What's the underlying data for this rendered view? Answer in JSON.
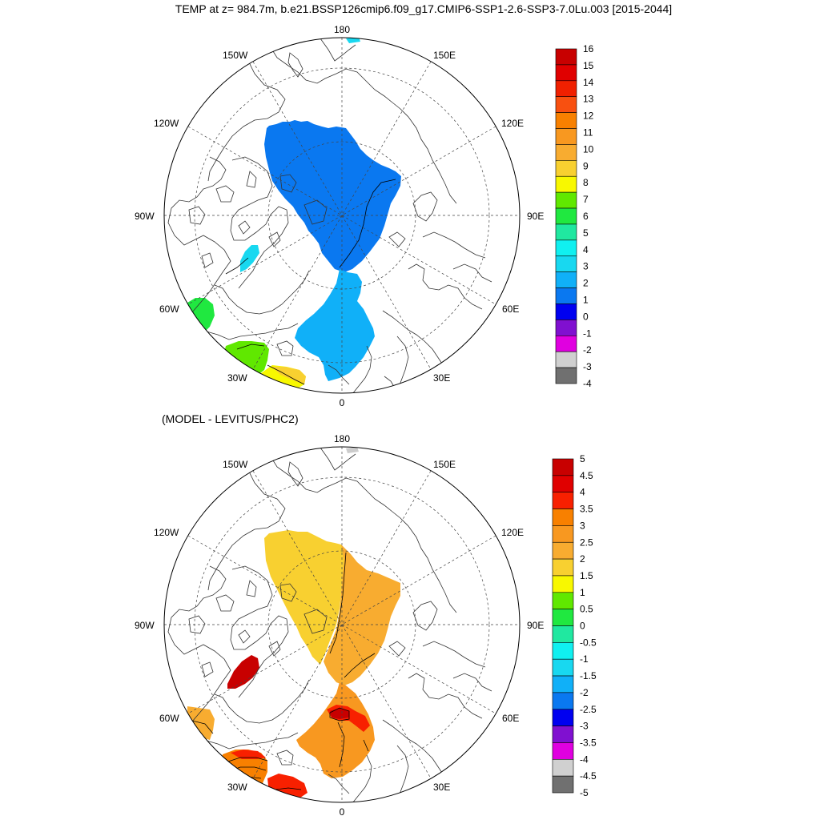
{
  "title": "TEMP at z= 984.7m, b.e21.BSSP126cmip6.f09_g17.CMIP6-SSP1-2.6-SSP3-7.0Lu.003 [2015-2044]",
  "subtitle": "(MODEL - LEVITUS/PHC2)",
  "lon_labels": {
    "top": "180",
    "bottom": "0",
    "left": "90W",
    "right": "90E",
    "ul_upper": "150W",
    "ul_lower": "120W",
    "ur_upper": "150E",
    "ur_lower": "120E",
    "ll_upper": "60W",
    "ll_lower": "30W",
    "lr_upper": "60E",
    "lr_lower": "30E"
  },
  "colorbars": [
    {
      "name": "temperature",
      "labels": [
        "16",
        "15",
        "14",
        "13",
        "12",
        "11",
        "10",
        "9",
        "8",
        "7",
        "6",
        "5",
        "4",
        "3",
        "2",
        "1",
        "0",
        "-1",
        "-2",
        "-3",
        "-4"
      ],
      "colors": [
        "#c80000",
        "#e00000",
        "#f02000",
        "#f85010",
        "#f88000",
        "#f89820",
        "#f8ac30",
        "#f8d030",
        "#f8f800",
        "#60e800",
        "#20e840",
        "#20e8a0",
        "#10f0f0",
        "#18d8f0",
        "#10b0f8",
        "#0a78f0",
        "#0000f0",
        "#8010d0",
        "#e000e0",
        "#d0d0d0",
        "#707070"
      ]
    },
    {
      "name": "difference",
      "labels": [
        "5",
        "4.5",
        "4",
        "3.5",
        "3",
        "2.5",
        "2",
        "1.5",
        "1",
        "0.5",
        "0",
        "-0.5",
        "-1",
        "-1.5",
        "-2",
        "-2.5",
        "-3",
        "-3.5",
        "-4",
        "-4.5",
        "-5"
      ],
      "colors": [
        "#c80000",
        "#e00000",
        "#f82000",
        "#f88000",
        "#f89820",
        "#f8ac30",
        "#f8d030",
        "#f8f800",
        "#60e800",
        "#20e840",
        "#20e8a0",
        "#10f0f0",
        "#18d8f0",
        "#10b0f8",
        "#0a78f0",
        "#0000f0",
        "#8010d0",
        "#e000e0",
        "#d0d0d0",
        "#707070"
      ]
    }
  ],
  "map_colors": {
    "upper_main": "#0a78f0",
    "upper_atlantic": "#10b0f8",
    "upper_baffin": "#18d8f0",
    "upper_labrador": "#20e840",
    "upper_ne_atlantic_green": "#60e800",
    "upper_ne_atlantic_yellow": "#f8f800",
    "upper_ne_atlantic_gold": "#f8d030",
    "lower_canadian": "#f8d030",
    "lower_eurasian": "#f8ac30",
    "lower_atlantic": "#f89820",
    "lower_hotspot": "#f82000",
    "lower_hotspot_core": "#c80000",
    "lower_baffin": "#c80000",
    "lower_labrador": "#f8ac30",
    "lower_ne_atlantic": "#f88000"
  }
}
